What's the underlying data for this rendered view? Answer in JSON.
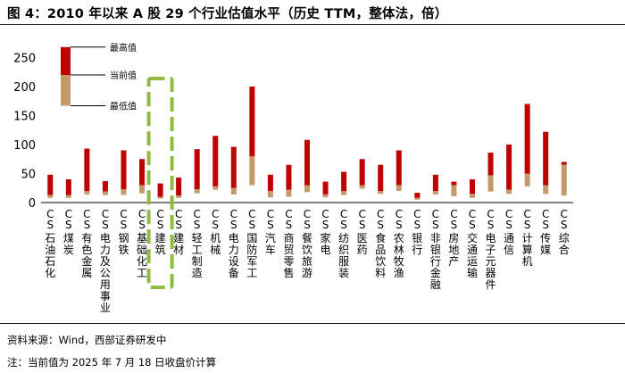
{
  "header": {
    "title": "图 4：2010 年以来 A 股 29 个行业估值水平（历史 TTM，整体法，倍）"
  },
  "footer": {
    "source": "资料来源：Wind，西部证券研发中",
    "note": "注：当前值为 2025 年 7 月 18 日收盘价计算"
  },
  "chart_data": {
    "type": "bar",
    "subtype": "floating-range-with-current",
    "ylim": [
      0,
      250
    ],
    "yticks": [
      0,
      50,
      100,
      150,
      200,
      250
    ],
    "grid": false,
    "legend": {
      "position": "top-left",
      "max_label": "最高值",
      "current_label": "当前值",
      "min_label": "最低值",
      "sample": {
        "min": 167,
        "current": 220,
        "max": 268
      }
    },
    "colors": {
      "upper": "#c00000",
      "lower": "#c49a6c",
      "highlight": "#8cbd3f",
      "axis": "#000000"
    },
    "highlight_category_index": 6,
    "categories": [
      "CS石油石化",
      "CS煤炭",
      "CS有色金属",
      "CS电力及公用事业",
      "CS钢铁",
      "CS基础化工",
      "CS建筑",
      "CS建材",
      "CS轻工制造",
      "CS机械",
      "CS电力设备",
      "CS国防军工",
      "CS汽车",
      "CS商贸零售",
      "CS餐饮旅游",
      "CS家电",
      "CS纺织服装",
      "CS医药",
      "CS食品饮料",
      "CS农林牧渔",
      "CS银行",
      "CS非银行金融",
      "CS房地产",
      "CS交通运输",
      "CS电子元器件",
      "CS通信",
      "CS计算机",
      "CS传媒",
      "CS综合"
    ],
    "series": [
      {
        "name": "最高值",
        "values": [
          48,
          40,
          93,
          37,
          90,
          75,
          33,
          43,
          92,
          115,
          96,
          200,
          48,
          65,
          108,
          36,
          53,
          75,
          65,
          90,
          17,
          48,
          36,
          40,
          86,
          100,
          170,
          122,
          70
        ]
      },
      {
        "name": "当前值",
        "values": [
          13,
          13,
          20,
          19,
          23,
          30,
          10,
          12,
          23,
          28,
          25,
          80,
          20,
          22,
          30,
          14,
          20,
          30,
          20,
          30,
          8,
          20,
          30,
          15,
          47,
          22,
          50,
          30,
          65
        ]
      },
      {
        "name": "最低值",
        "values": [
          8,
          8,
          14,
          13,
          13,
          16,
          7,
          8,
          16,
          22,
          14,
          30,
          9,
          10,
          18,
          9,
          13,
          24,
          15,
          20,
          5,
          14,
          11,
          8,
          19,
          15,
          28,
          15,
          12
        ]
      }
    ]
  }
}
